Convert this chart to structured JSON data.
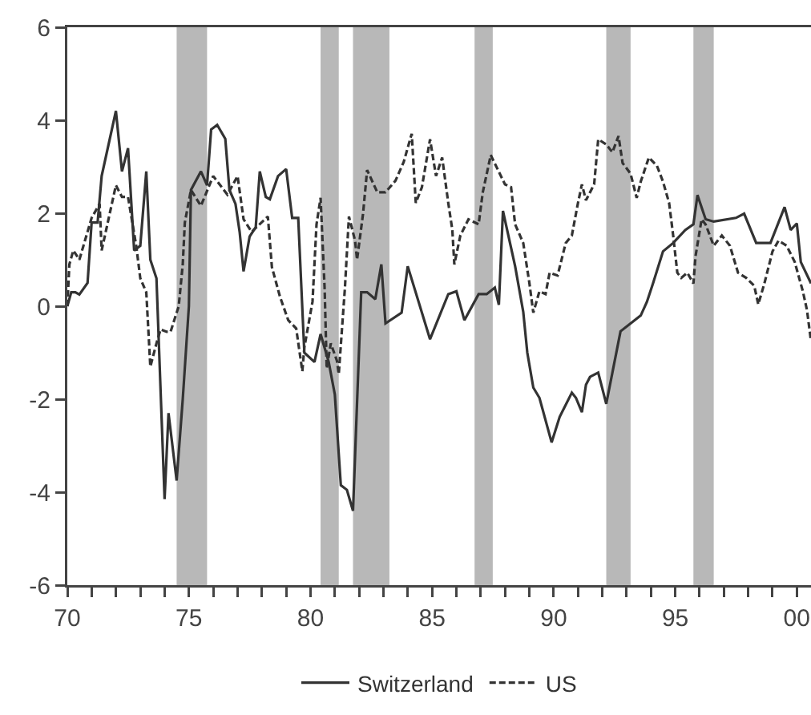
{
  "chart_data": {
    "type": "line",
    "xlim": [
      "1970-01",
      "2000-08"
    ],
    "ylim": [
      -6,
      6
    ],
    "xticks": [
      {
        "value": "1970",
        "label": "70"
      },
      {
        "value": "1971",
        "label": null
      },
      {
        "value": "1972",
        "label": null
      },
      {
        "value": "1973",
        "label": null
      },
      {
        "value": "1974",
        "label": null
      },
      {
        "value": "1975",
        "label": "75"
      },
      {
        "value": "1976",
        "label": null
      },
      {
        "value": "1977",
        "label": null
      },
      {
        "value": "1978",
        "label": null
      },
      {
        "value": "1979",
        "label": null
      },
      {
        "value": "1980",
        "label": "80"
      },
      {
        "value": "1981",
        "label": null
      },
      {
        "value": "1982",
        "label": null
      },
      {
        "value": "1983",
        "label": null
      },
      {
        "value": "1984",
        "label": null
      },
      {
        "value": "1985",
        "label": "85"
      },
      {
        "value": "1986",
        "label": null
      },
      {
        "value": "1987",
        "label": null
      },
      {
        "value": "1988",
        "label": null
      },
      {
        "value": "1989",
        "label": null
      },
      {
        "value": "1990",
        "label": "90"
      },
      {
        "value": "1991",
        "label": null
      },
      {
        "value": "1992",
        "label": null
      },
      {
        "value": "1993",
        "label": null
      },
      {
        "value": "1994",
        "label": null
      },
      {
        "value": "1995",
        "label": "95"
      },
      {
        "value": "1996",
        "label": null
      },
      {
        "value": "1997",
        "label": null
      },
      {
        "value": "1998",
        "label": null
      },
      {
        "value": "1999",
        "label": null
      },
      {
        "value": "2000",
        "label": "00"
      }
    ],
    "yticks": [
      -6,
      -4,
      -2,
      0,
      2,
      4,
      6
    ],
    "grid": false,
    "legend": "bottom",
    "bands": [
      {
        "axis": "x",
        "from": "1974-07",
        "to": "1975-10",
        "color": "#b8b8b8"
      },
      {
        "axis": "x",
        "from": "1980-06",
        "to": "1981-03",
        "color": "#b8b8b8"
      },
      {
        "axis": "x",
        "from": "1981-10",
        "to": "1983-04",
        "color": "#b8b8b8"
      },
      {
        "axis": "x",
        "from": "1986-10",
        "to": "1987-07",
        "color": "#b8b8b8"
      },
      {
        "axis": "x",
        "from": "1992-03",
        "to": "1993-03",
        "color": "#b8b8b8"
      },
      {
        "axis": "x",
        "from": "1995-10",
        "to": "1996-08",
        "color": "#b8b8b8"
      }
    ],
    "series": [
      {
        "name": "Switzerland",
        "color": "#333333",
        "line_style": "solid",
        "x": [
          "1970-01",
          "1970-03",
          "1970-05",
          "1970-07",
          "1970-11",
          "1971-01",
          "1971-04",
          "1971-06",
          "1972-01",
          "1972-04",
          "1972-07",
          "1972-10",
          "1973-01",
          "1973-04",
          "1973-06",
          "1973-09",
          "1974-01",
          "1974-03",
          "1974-07",
          "1974-10",
          "1975-01",
          "1975-02",
          "1975-07",
          "1975-10",
          "1975-12",
          "1976-03",
          "1976-07",
          "1976-09",
          "1976-12",
          "1977-02",
          "1977-04",
          "1977-07",
          "1977-10",
          "1977-12",
          "1978-03",
          "1978-05",
          "1978-09",
          "1979-01",
          "1979-04",
          "1979-07",
          "1979-10",
          "1980-03",
          "1980-06",
          "1980-10",
          "1981-01",
          "1981-04",
          "1981-07",
          "1981-10",
          "1982-02",
          "1982-05",
          "1982-09",
          "1982-12",
          "1983-02",
          "1983-10",
          "1984-01",
          "1984-12",
          "1985-09",
          "1986-01",
          "1986-05",
          "1986-12",
          "1987-04",
          "1987-08",
          "1987-10",
          "1987-12",
          "1988-06",
          "1988-10",
          "1988-12",
          "1989-03",
          "1989-06",
          "1989-12",
          "1990-04",
          "1990-10",
          "1990-12",
          "1991-03",
          "1991-05",
          "1991-07",
          "1991-11",
          "1992-03",
          "1992-10",
          "1993-03",
          "1993-08",
          "1993-11",
          "1994-02",
          "1994-07",
          "1994-12",
          "1995-06",
          "1995-10",
          "1995-12",
          "1996-04",
          "1996-08",
          "1997-07",
          "1997-11",
          "1998-05",
          "1998-12",
          "1999-07",
          "1999-10",
          "2000-01",
          "2000-03",
          "2000-08"
        ],
        "values": [
          0,
          0.3,
          0.3,
          0.25,
          0.5,
          1.8,
          1.8,
          2.8,
          4.2,
          2.9,
          3.4,
          1.2,
          1.3,
          2.9,
          1,
          0.6,
          -4.15,
          -2.3,
          -3.75,
          -2,
          0,
          2.5,
          2.9,
          2.6,
          3.8,
          3.9,
          3.6,
          2.5,
          2.2,
          1.6,
          0.75,
          1.5,
          1.7,
          2.9,
          2.35,
          2.3,
          2.8,
          2.95,
          1.9,
          1.9,
          -1,
          -1.2,
          -0.6,
          -1.2,
          -1.9,
          -3.85,
          -3.95,
          -4.4,
          0.3,
          0.3,
          0.15,
          0.9,
          -0.37,
          -0.14,
          0.86,
          -0.71,
          0.26,
          0.32,
          -0.3,
          0.26,
          0.26,
          0.4,
          0.03,
          2.05,
          0.86,
          -0.12,
          -1,
          -1.75,
          -1.97,
          -2.93,
          -2.38,
          -1.86,
          -1.97,
          -2.28,
          -1.69,
          -1.52,
          -1.43,
          -2.1,
          -0.54,
          -0.37,
          -0.2,
          0.09,
          0.49,
          1.18,
          1.36,
          1.64,
          1.76,
          2.39,
          1.87,
          1.82,
          1.9,
          1.99,
          1.36,
          1.36,
          2.13,
          1.64,
          1.78,
          0.95,
          0.49
        ]
      },
      {
        "name": "US",
        "color": "#333333",
        "line_style": "dashed",
        "x": [
          "1970-01",
          "1970-02",
          "1970-04",
          "1970-07",
          "1971-01",
          "1971-05",
          "1971-06",
          "1972-01",
          "1972-04",
          "1972-07",
          "1972-11",
          "1973-01",
          "1973-04",
          "1973-06",
          "1973-09",
          "1973-11",
          "1974-02",
          "1974-04",
          "1974-07",
          "1974-08",
          "1974-10",
          "1974-11",
          "1975-02",
          "1975-07",
          "1976-01",
          "1976-08",
          "1977-01",
          "1977-04",
          "1977-08",
          "1978-04",
          "1978-06",
          "1978-10",
          "1979-02",
          "1979-06",
          "1979-09",
          "1979-10",
          "1980-02",
          "1980-04",
          "1980-06",
          "1980-08",
          "1980-09",
          "1980-11",
          "1981-02",
          "1981-03",
          "1981-06",
          "1981-08",
          "1981-11",
          "1981-12",
          "1982-03",
          "1982-05",
          "1982-10",
          "1983-02",
          "1983-07",
          "1983-11",
          "1984-03",
          "1984-05",
          "1984-08",
          "1984-12",
          "1985-03",
          "1985-06",
          "1985-09",
          "1985-11",
          "1985-12",
          "1986-03",
          "1986-07",
          "1986-12",
          "1987-02",
          "1987-06",
          "1988-01",
          "1988-04",
          "1988-06",
          "1988-10",
          "1989-01",
          "1989-03",
          "1989-06",
          "1989-09",
          "1989-11",
          "1990-03",
          "1990-07",
          "1990-10",
          "1991-01",
          "1991-03",
          "1991-05",
          "1991-09",
          "1991-11",
          "1992-03",
          "1992-06",
          "1992-09",
          "1992-11",
          "1993-03",
          "1993-06",
          "1993-08",
          "1993-12",
          "1994-04",
          "1994-07",
          "1994-10",
          "1994-12",
          "1995-02",
          "1995-04",
          "1995-07",
          "1995-10",
          "1995-11",
          "1996-02",
          "1996-04",
          "1996-08",
          "1996-12",
          "1997-04",
          "1997-08",
          "1997-12",
          "1998-04",
          "1998-06",
          "1998-09",
          "1999-01",
          "1999-04",
          "1999-08",
          "1999-12",
          "2000-04",
          "2000-06",
          "2000-08"
        ],
        "values": [
          0,
          0.9,
          1.2,
          1,
          1.9,
          2.2,
          1.2,
          2.6,
          2.35,
          2.35,
          1.3,
          0.6,
          0.3,
          -1.3,
          -0.8,
          -0.5,
          -0.55,
          -0.55,
          -0.14,
          0,
          0.9,
          1.8,
          2.5,
          2.16,
          2.8,
          2.4,
          2.8,
          1.87,
          1.6,
          1.93,
          0.84,
          0.2,
          -0.3,
          -0.48,
          -1.4,
          -0.89,
          0.1,
          1.76,
          2.33,
          0.38,
          -1.34,
          -0.8,
          -1.17,
          -1.46,
          0.38,
          1.93,
          1.41,
          1,
          1.99,
          2.93,
          2.45,
          2.45,
          2.7,
          3.1,
          3.71,
          2.22,
          2.56,
          3.59,
          2.8,
          3.2,
          2.22,
          1.64,
          0.9,
          1.52,
          1.87,
          1.76,
          2.45,
          3.25,
          2.62,
          2.56,
          1.76,
          1.36,
          0.5,
          -0.14,
          0.32,
          0.26,
          0.72,
          0.66,
          1.36,
          1.52,
          2.22,
          2.62,
          2.28,
          2.62,
          3.59,
          3.48,
          3.31,
          3.66,
          3.08,
          2.85,
          2.33,
          2.68,
          3.2,
          3.02,
          2.68,
          2.22,
          1.52,
          0.72,
          0.61,
          0.72,
          0.49,
          1.07,
          1.87,
          1.76,
          1.3,
          1.52,
          1.3,
          0.72,
          0.61,
          0.44,
          0.04,
          0.49,
          1.18,
          1.41,
          1.3,
          0.95,
          0.32,
          -0.08,
          -0.75
        ]
      }
    ]
  }
}
